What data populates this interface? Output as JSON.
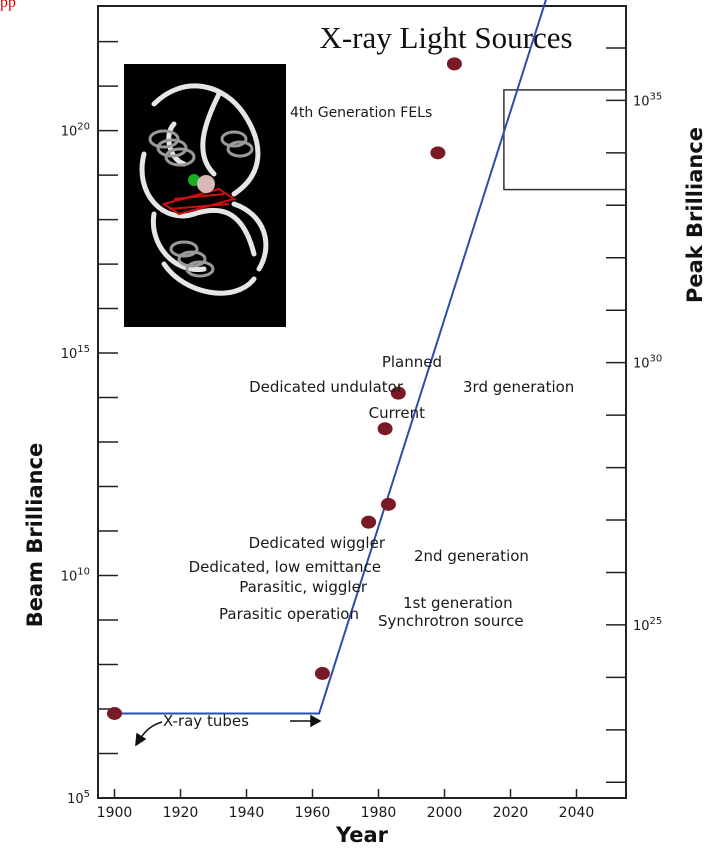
{
  "corner_text": "pp",
  "colors": {
    "line": "#2b4fa8",
    "point": "#7a1a26",
    "axis": "#222222",
    "text": "#1a1a1a"
  },
  "chart_data": {
    "type": "line",
    "title": "X-ray Light Sources",
    "xlabel": "Year",
    "ylabel_left": "Beam Brilliance",
    "ylabel_right": "Peak Brilliance",
    "x_ticks": [
      "1900",
      "1920",
      "1940",
      "1960",
      "1980",
      "2000",
      "2020",
      "2040"
    ],
    "xlim": [
      1895,
      2055
    ],
    "y_left_log_ticks": [
      {
        "base": "10",
        "exp": "5",
        "value": 5
      },
      {
        "base": "10",
        "exp": "10",
        "value": 10
      },
      {
        "base": "10",
        "exp": "15",
        "value": 15
      },
      {
        "base": "10",
        "exp": "20",
        "value": 20
      }
    ],
    "y_left_lim": [
      5,
      22.8
    ],
    "y_right_log_ticks": [
      {
        "base": "10",
        "exp": "25",
        "value": 25
      },
      {
        "base": "10",
        "exp": "30",
        "value": 30
      },
      {
        "base": "10",
        "exp": "35",
        "value": 35
      }
    ],
    "y_right_lim": [
      21.7,
      36.8
    ],
    "series": [
      {
        "x": [
          1900,
          1962,
          2034
        ],
        "y_left_log": [
          6.9,
          6.9,
          23.7
        ]
      }
    ],
    "points": [
      {
        "label": "X-ray tubes",
        "x": 1900,
        "y_left_log": 6.9
      },
      {
        "label": "X-ray tubes",
        "x": 1963,
        "y_left_log": 7.8
      },
      {
        "label": "Parasitic operation",
        "x": 1977,
        "y_left_log": 11.2
      },
      {
        "label": "Parasitic, wiggler",
        "x": 1983,
        "y_left_log": 11.6
      },
      {
        "label": "Dedicated, low emittance",
        "x": 1982,
        "y_left_log": 13.3
      },
      {
        "label": "Dedicated wiggler",
        "x": 1986,
        "y_left_log": 14.1
      },
      {
        "label": "Current",
        "x": 1998,
        "y_left_log": 19.5
      },
      {
        "label": "Planned",
        "x": 2003,
        "y_left_log": 21.5
      }
    ],
    "annotations": [
      "4th Generation FELs",
      "Planned",
      "Dedicated undulator",
      "3rd generation",
      "Current",
      "Dedicated wiggler",
      "2nd generation",
      "Dedicated, low emittance",
      "Parasitic, wiggler",
      "1st generation",
      "Parasitic operation",
      "Synchrotron source",
      "X-ray tubes"
    ],
    "fel_region": {
      "label": "4th Generation FELs",
      "x": [
        2018,
        2055
      ],
      "y_right_log": [
        33.3,
        35.2
      ]
    }
  }
}
